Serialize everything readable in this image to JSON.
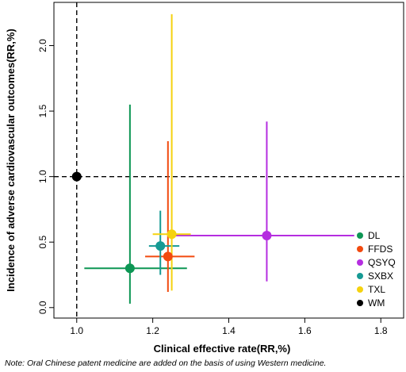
{
  "chart_data": {
    "type": "scatter",
    "xlabel": "Clinical effective rate(RR,%)",
    "ylabel": "Incidence of adverse cardiovascular outcomes(RR,%)",
    "xlim": [
      0.94,
      1.86
    ],
    "ylim": [
      -0.08,
      2.33
    ],
    "x_ticks": [
      "1.0",
      "1.2",
      "1.4",
      "1.6",
      "1.8"
    ],
    "y_ticks": [
      "0.0",
      "0.5",
      "1.0",
      "1.5",
      "2.0"
    ],
    "grid": false,
    "legend_position": "bottom-right",
    "reference_lines": [
      {
        "axis": "x",
        "value": 1.0,
        "style": "dashed"
      },
      {
        "axis": "y",
        "value": 1.0,
        "style": "dashed"
      }
    ],
    "series": [
      {
        "name": "DL",
        "color": "#0d9654",
        "x": 1.14,
        "x_low": 1.02,
        "x_high": 1.29,
        "y": 0.3,
        "y_low": 0.03,
        "y_high": 1.55
      },
      {
        "name": "FFDS",
        "color": "#f24a0f",
        "x": 1.24,
        "x_low": 1.18,
        "x_high": 1.31,
        "y": 0.39,
        "y_low": 0.12,
        "y_high": 1.27
      },
      {
        "name": "QSYQ",
        "color": "#b52ee0",
        "x": 1.5,
        "x_low": 1.25,
        "x_high": 1.73,
        "y": 0.55,
        "y_low": 0.2,
        "y_high": 1.42
      },
      {
        "name": "SXBX",
        "color": "#169a94",
        "x": 1.22,
        "x_low": 1.19,
        "x_high": 1.27,
        "y": 0.47,
        "y_low": 0.25,
        "y_high": 0.74
      },
      {
        "name": "TXL",
        "color": "#f5d20f",
        "x": 1.25,
        "x_low": 1.2,
        "x_high": 1.3,
        "y": 0.56,
        "y_low": 0.13,
        "y_high": 2.24
      },
      {
        "name": "WM",
        "color": "#000000",
        "x": 1.0,
        "y": 1.0
      }
    ]
  },
  "note": "Note: Oral Chinese patent medicine are added on the basis of using Western medicine."
}
